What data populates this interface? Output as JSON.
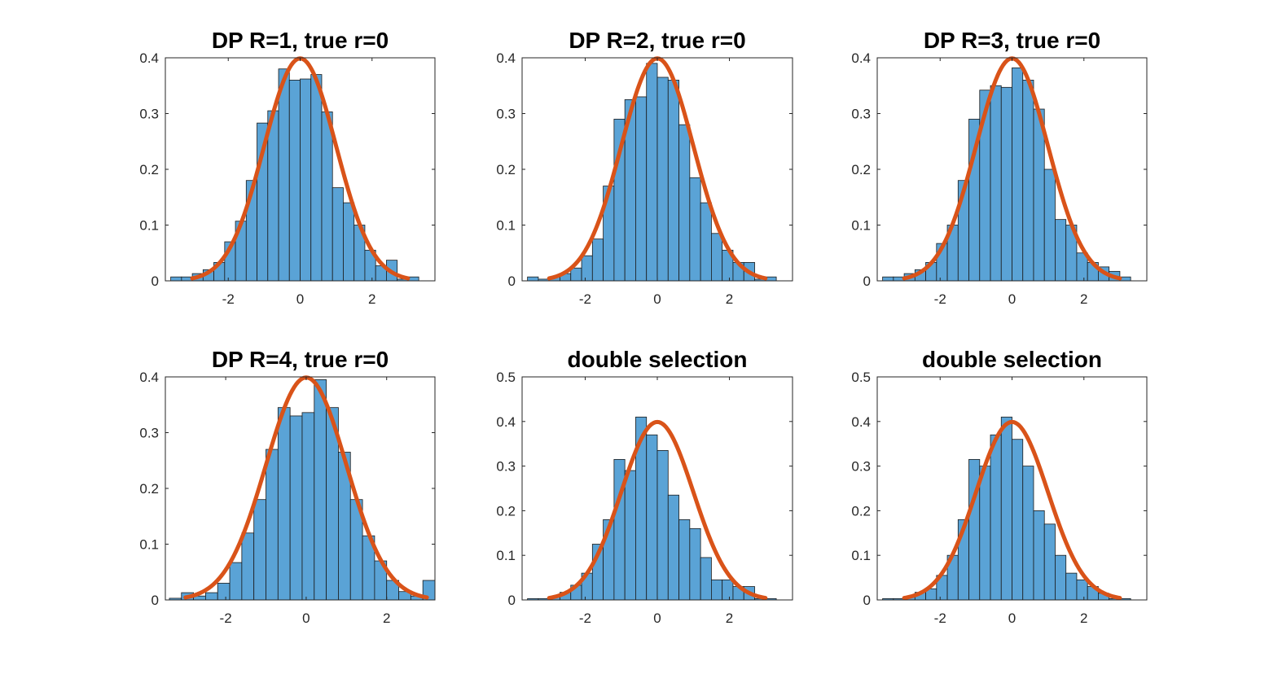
{
  "colors": {
    "bar": "#5aa3d6",
    "curve": "#d95319"
  },
  "chart_data": [
    {
      "type": "bar",
      "title": "DP R=1, true r=0",
      "xlim": [
        -3.75,
        3.75
      ],
      "ylim": [
        0,
        0.4
      ],
      "xticks": [
        -2,
        0,
        2
      ],
      "xtick_labels": [
        "-2",
        "0",
        "2"
      ],
      "yticks": [
        0,
        0.1,
        0.2,
        0.3,
        0.4
      ],
      "ytick_labels": [
        "0",
        "0.1",
        "0.2",
        "0.3",
        "0.4"
      ],
      "bin_edges": [
        -3.6,
        -3.3,
        -3.0,
        -2.7,
        -2.4,
        -2.1,
        -1.8,
        -1.5,
        -1.2,
        -0.9,
        -0.6,
        -0.3,
        0.0,
        0.3,
        0.6,
        0.9,
        1.2,
        1.5,
        1.8,
        2.1,
        2.4,
        2.7,
        3.0,
        3.3
      ],
      "values": [
        0.007,
        0.007,
        0.013,
        0.02,
        0.033,
        0.07,
        0.107,
        0.18,
        0.283,
        0.305,
        0.38,
        0.36,
        0.362,
        0.37,
        0.303,
        0.167,
        0.14,
        0.1,
        0.055,
        0.027,
        0.037,
        0.003,
        0.007
      ],
      "normal_pdf": {
        "mu": 0,
        "sigma": 1,
        "x_range": [
          -3,
          3
        ]
      }
    },
    {
      "type": "bar",
      "title": "DP R=2, true r=0",
      "xlim": [
        -3.75,
        3.75
      ],
      "ylim": [
        0,
        0.4
      ],
      "xticks": [
        -2,
        0,
        2
      ],
      "xtick_labels": [
        "-2",
        "0",
        "2"
      ],
      "yticks": [
        0,
        0.1,
        0.2,
        0.3,
        0.4
      ],
      "ytick_labels": [
        "0",
        "0.1",
        "0.2",
        "0.3",
        "0.4"
      ],
      "bin_edges": [
        -3.6,
        -3.3,
        -3.0,
        -2.7,
        -2.4,
        -2.1,
        -1.8,
        -1.5,
        -1.2,
        -0.9,
        -0.6,
        -0.3,
        0.0,
        0.3,
        0.6,
        0.9,
        1.2,
        1.5,
        1.8,
        2.1,
        2.4,
        2.7,
        3.0,
        3.3
      ],
      "values": [
        0.007,
        0.003,
        0.007,
        0.013,
        0.023,
        0.045,
        0.075,
        0.17,
        0.29,
        0.325,
        0.33,
        0.39,
        0.365,
        0.36,
        0.28,
        0.185,
        0.14,
        0.085,
        0.055,
        0.033,
        0.033,
        0.003,
        0.007
      ],
      "normal_pdf": {
        "mu": 0,
        "sigma": 1,
        "x_range": [
          -3,
          3
        ]
      }
    },
    {
      "type": "bar",
      "title": "DP R=3, true r=0",
      "xlim": [
        -3.75,
        3.75
      ],
      "ylim": [
        0,
        0.4
      ],
      "xticks": [
        -2,
        0,
        2
      ],
      "xtick_labels": [
        "-2",
        "0",
        "2"
      ],
      "yticks": [
        0,
        0.1,
        0.2,
        0.3,
        0.4
      ],
      "ytick_labels": [
        "0",
        "0.1",
        "0.2",
        "0.3",
        "0.4"
      ],
      "bin_edges": [
        -3.6,
        -3.3,
        -3.0,
        -2.7,
        -2.4,
        -2.1,
        -1.8,
        -1.5,
        -1.2,
        -0.9,
        -0.6,
        -0.3,
        0.0,
        0.3,
        0.6,
        0.9,
        1.2,
        1.5,
        1.8,
        2.1,
        2.4,
        2.7,
        3.0,
        3.3
      ],
      "values": [
        0.007,
        0.007,
        0.013,
        0.02,
        0.033,
        0.067,
        0.1,
        0.18,
        0.29,
        0.342,
        0.35,
        0.347,
        0.382,
        0.36,
        0.308,
        0.2,
        0.11,
        0.1,
        0.05,
        0.033,
        0.025,
        0.017,
        0.007
      ],
      "normal_pdf": {
        "mu": 0,
        "sigma": 1,
        "x_range": [
          -3,
          3
        ]
      }
    },
    {
      "type": "bar",
      "title": "DP R=4, true r=0",
      "xlim": [
        -3.5,
        3.2
      ],
      "ylim": [
        0,
        0.4
      ],
      "xticks": [
        -2,
        0,
        2
      ],
      "xtick_labels": [
        "-2",
        "0",
        "2"
      ],
      "yticks": [
        0,
        0.1,
        0.2,
        0.3,
        0.4
      ],
      "ytick_labels": [
        "0",
        "0.1",
        "0.2",
        "0.3",
        "0.4"
      ],
      "bin_edges": [
        -3.4,
        -3.1,
        -2.8,
        -2.5,
        -2.2,
        -1.9,
        -1.6,
        -1.3,
        -1.0,
        -0.7,
        -0.4,
        -0.1,
        0.2,
        0.5,
        0.8,
        1.1,
        1.4,
        1.7,
        2.0,
        2.3,
        2.6,
        2.9,
        3.2
      ],
      "values": [
        0.003,
        0.013,
        0.007,
        0.013,
        0.03,
        0.067,
        0.12,
        0.18,
        0.27,
        0.345,
        0.33,
        0.336,
        0.395,
        0.345,
        0.265,
        0.18,
        0.115,
        0.07,
        0.035,
        0.015,
        0.007,
        0.035
      ],
      "normal_pdf": {
        "mu": 0,
        "sigma": 1,
        "x_range": [
          -3,
          3
        ]
      }
    },
    {
      "type": "bar",
      "title": "double selection",
      "xlim": [
        -3.75,
        3.75
      ],
      "ylim": [
        0,
        0.5
      ],
      "xticks": [
        -2,
        0,
        2
      ],
      "xtick_labels": [
        "-2",
        "0",
        "2"
      ],
      "yticks": [
        0,
        0.1,
        0.2,
        0.3,
        0.4,
        0.5
      ],
      "ytick_labels": [
        "0",
        "0.1",
        "0.2",
        "0.3",
        "0.4",
        "0.5"
      ],
      "bin_edges": [
        -3.6,
        -3.3,
        -3.0,
        -2.7,
        -2.4,
        -2.1,
        -1.8,
        -1.5,
        -1.2,
        -0.9,
        -0.6,
        -0.3,
        0.0,
        0.3,
        0.6,
        0.9,
        1.2,
        1.5,
        1.8,
        2.1,
        2.4,
        2.7,
        3.0,
        3.3
      ],
      "values": [
        0.003,
        0.003,
        0.007,
        0.017,
        0.033,
        0.06,
        0.125,
        0.18,
        0.315,
        0.29,
        0.41,
        0.37,
        0.335,
        0.235,
        0.18,
        0.16,
        0.095,
        0.045,
        0.045,
        0.03,
        0.03,
        0.003,
        0.003
      ],
      "normal_pdf": {
        "mu": 0,
        "sigma": 1,
        "x_range": [
          -3,
          3
        ]
      }
    },
    {
      "type": "bar",
      "title": "double selection",
      "xlim": [
        -3.75,
        3.75
      ],
      "ylim": [
        0,
        0.5
      ],
      "xticks": [
        -2,
        0,
        2
      ],
      "xtick_labels": [
        "-2",
        "0",
        "2"
      ],
      "yticks": [
        0,
        0.1,
        0.2,
        0.3,
        0.4,
        0.5
      ],
      "ytick_labels": [
        "0",
        "0.1",
        "0.2",
        "0.3",
        "0.4",
        "0.5"
      ],
      "bin_edges": [
        -3.6,
        -3.3,
        -3.0,
        -2.7,
        -2.4,
        -2.1,
        -1.8,
        -1.5,
        -1.2,
        -0.9,
        -0.6,
        -0.3,
        0.0,
        0.3,
        0.6,
        0.9,
        1.2,
        1.5,
        1.8,
        2.1,
        2.4,
        2.7,
        3.0,
        3.3
      ],
      "values": [
        0.003,
        0.003,
        0.007,
        0.017,
        0.025,
        0.055,
        0.1,
        0.18,
        0.315,
        0.3,
        0.37,
        0.41,
        0.36,
        0.3,
        0.2,
        0.17,
        0.1,
        0.06,
        0.045,
        0.03,
        0.015,
        0.003,
        0.003
      ],
      "normal_pdf": {
        "mu": 0,
        "sigma": 1,
        "x_range": [
          -3,
          3
        ]
      }
    }
  ]
}
